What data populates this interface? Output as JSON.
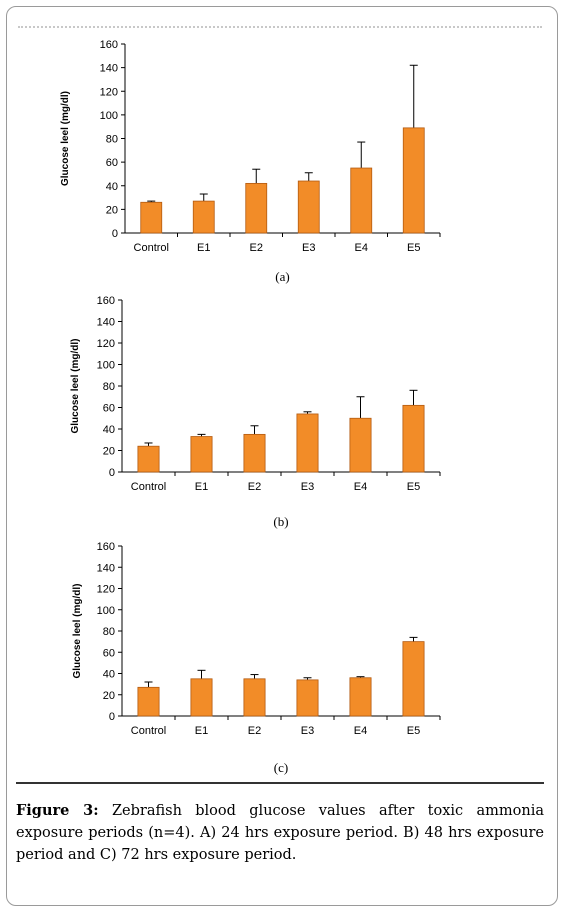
{
  "chart_data": [
    {
      "type": "bar",
      "panel_label": "(a)",
      "ylabel": "Glucose leel (mg/dl)",
      "xlabel": "",
      "categories": [
        "Control",
        "E1",
        "E2",
        "E3",
        "E4",
        "E5"
      ],
      "values": [
        26,
        27,
        42,
        44,
        55,
        89
      ],
      "errors": [
        1,
        6,
        12,
        7,
        22,
        53
      ],
      "ylim": [
        0,
        160
      ],
      "yticks": [
        0,
        20,
        40,
        60,
        80,
        100,
        120,
        140,
        160
      ],
      "bar_color": "#f28c28",
      "grid": false
    },
    {
      "type": "bar",
      "panel_label": "(b)",
      "ylabel": "Glucose leel (mg/dl)",
      "xlabel": "",
      "categories": [
        "Control",
        "E1",
        "E2",
        "E3",
        "E4",
        "E5"
      ],
      "values": [
        24,
        33,
        35,
        54,
        50,
        62
      ],
      "errors": [
        3,
        2,
        8,
        2,
        20,
        14
      ],
      "ylim": [
        0,
        160
      ],
      "yticks": [
        0,
        20,
        40,
        60,
        80,
        100,
        120,
        140,
        160
      ],
      "bar_color": "#f28c28",
      "grid": false
    },
    {
      "type": "bar",
      "panel_label": "(c)",
      "ylabel": "Glucose leel (mg/dl)",
      "xlabel": "",
      "categories": [
        "Control",
        "E1",
        "E2",
        "E3",
        "E4",
        "E5"
      ],
      "values": [
        27,
        35,
        35,
        34,
        36,
        70
      ],
      "errors": [
        5,
        8,
        4,
        2,
        1,
        4
      ],
      "ylim": [
        0,
        160
      ],
      "yticks": [
        0,
        20,
        40,
        60,
        80,
        100,
        120,
        140,
        160
      ],
      "bar_color": "#f28c28",
      "grid": false
    }
  ],
  "caption": {
    "label": "Figure 3:",
    "text": " Zebrafish blood glucose values after toxic ammonia exposure periods (n=4). A) 24 hrs exposure period. B) 48 hrs exposure period and C) 72 hrs exposure period."
  }
}
